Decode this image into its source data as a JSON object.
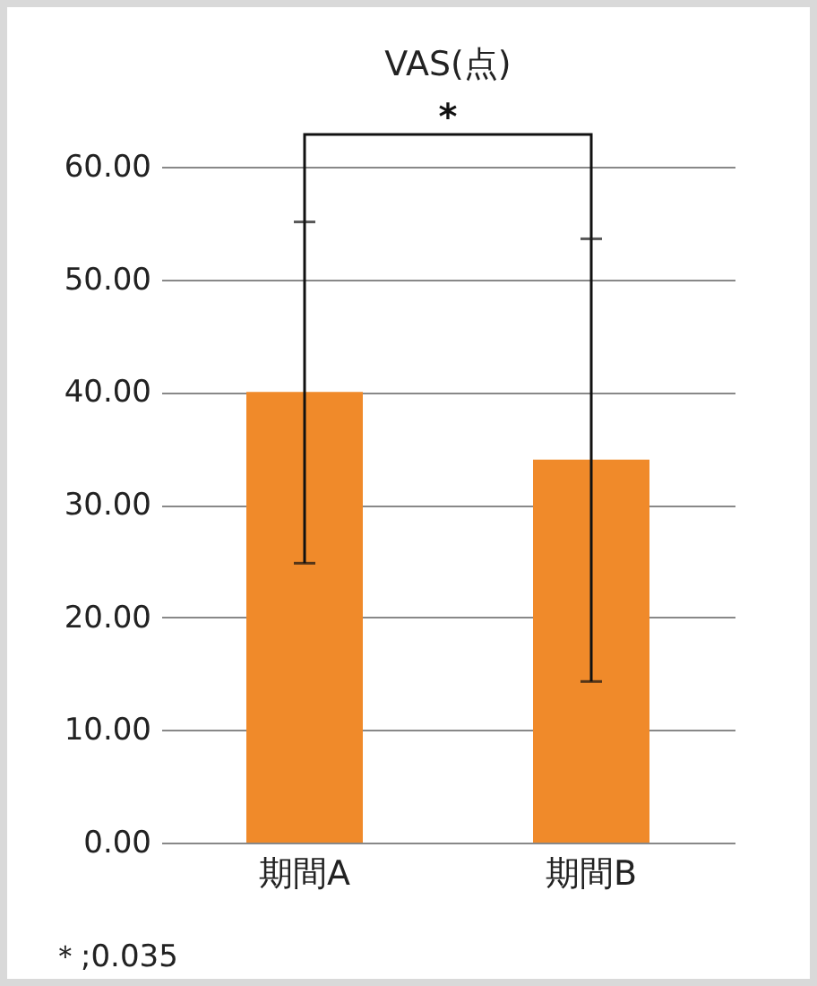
{
  "chart_data": {
    "type": "bar",
    "title": "VAS(点)",
    "categories": [
      "期間A",
      "期間B"
    ],
    "values": [
      40,
      34
    ],
    "errors": [
      [
        24.8,
        55.1
      ],
      [
        14.3,
        53.6
      ]
    ],
    "color": "#f08a2a",
    "ylim": [
      0,
      60
    ],
    "yticks": [
      {
        "value": 0,
        "label": "0.00"
      },
      {
        "value": 10,
        "label": "10.00"
      },
      {
        "value": 20,
        "label": "20.00"
      },
      {
        "value": 30,
        "label": "30.00"
      },
      {
        "value": 40,
        "label": "40.00"
      },
      {
        "value": 50,
        "label": "50.00"
      },
      {
        "value": 60,
        "label": "60.00"
      }
    ],
    "grid": "y",
    "annotations": [
      "*",
      "＊;0.035"
    ]
  }
}
